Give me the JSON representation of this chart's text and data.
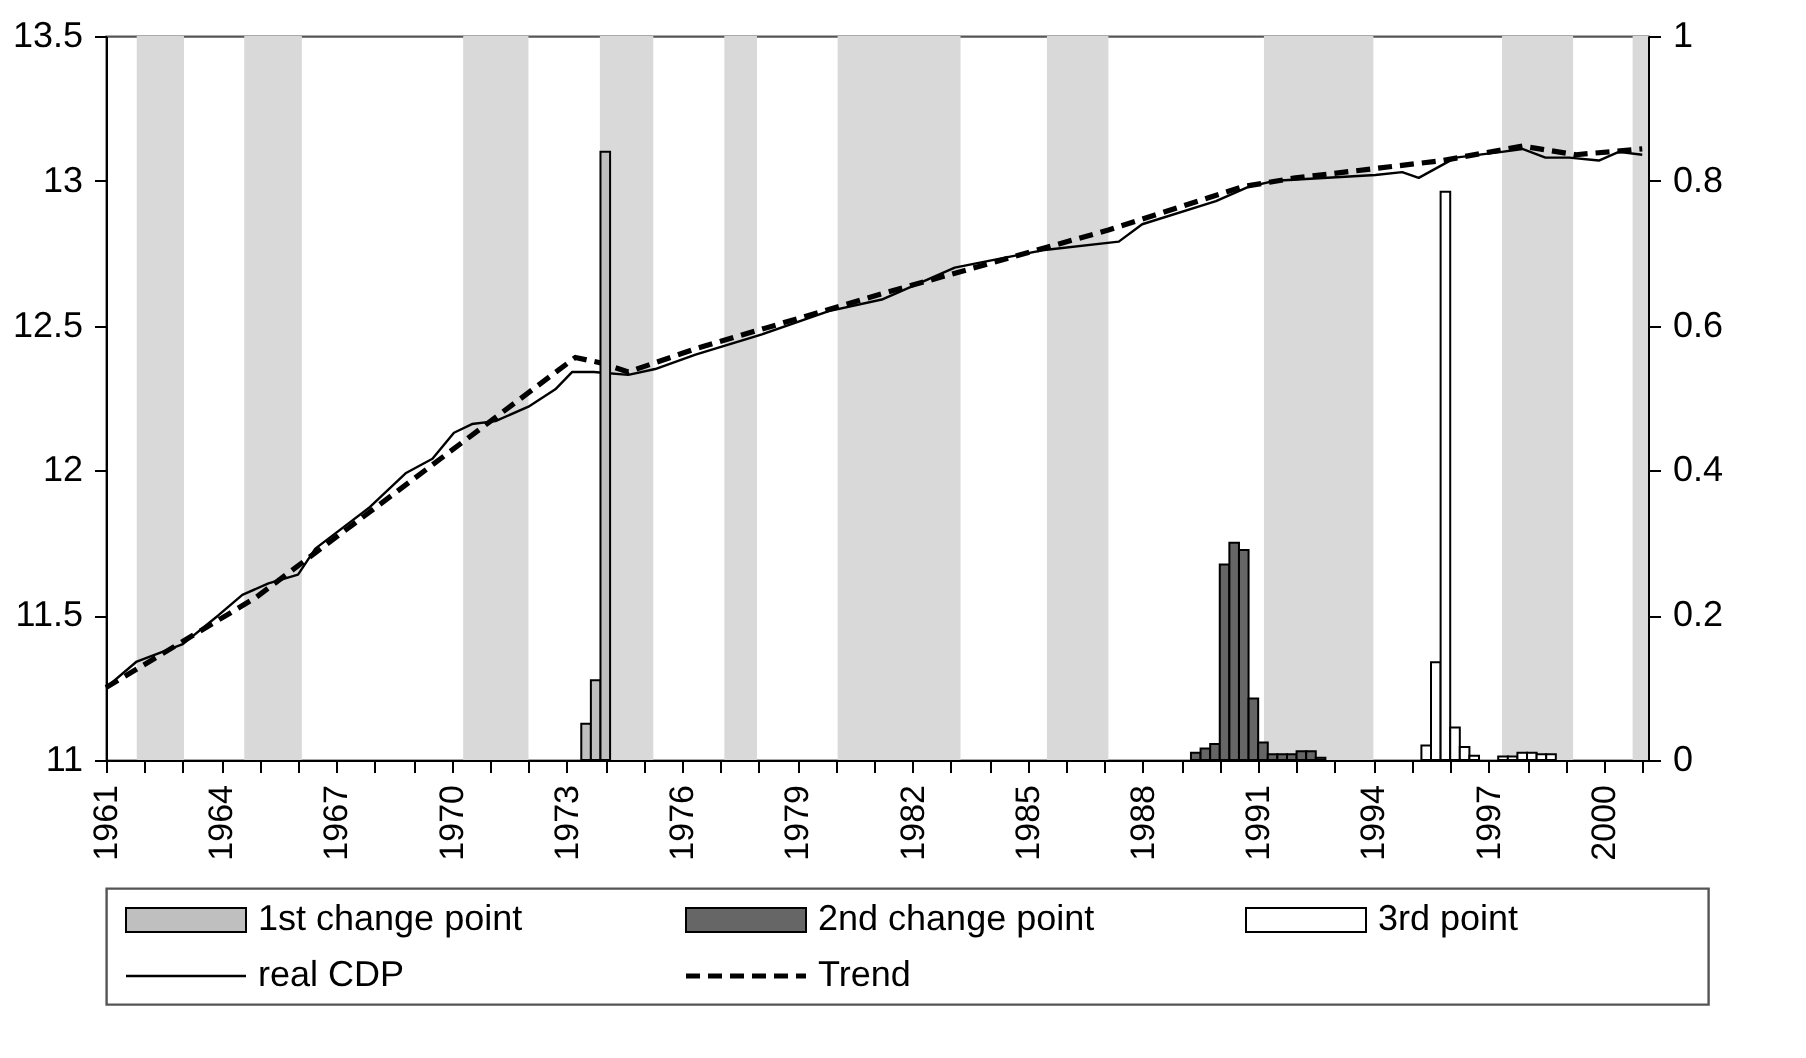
{
  "chart_data": {
    "type": "line",
    "xlim": [
      1961,
      2001.15
    ],
    "xticks": [
      1961,
      {
        "value": 1962,
        "label": null
      },
      {
        "value": 1963,
        "label": null
      },
      1964,
      {
        "value": 1965,
        "label": null
      },
      {
        "value": 1966,
        "label": null
      },
      1967,
      {
        "value": 1968,
        "label": null
      },
      {
        "value": 1969,
        "label": null
      },
      1970,
      {
        "value": 1971,
        "label": null
      },
      {
        "value": 1972,
        "label": null
      },
      1973,
      {
        "value": 1974,
        "label": null
      },
      {
        "value": 1975,
        "label": null
      },
      1976,
      {
        "value": 1977,
        "label": null
      },
      {
        "value": 1978,
        "label": null
      },
      1979,
      {
        "value": 1980,
        "label": null
      },
      {
        "value": 1981,
        "label": null
      },
      1982,
      {
        "value": 1983,
        "label": null
      },
      {
        "value": 1984,
        "label": null
      },
      1985,
      {
        "value": 1986,
        "label": null
      },
      {
        "value": 1987,
        "label": null
      },
      1988,
      {
        "value": 1989,
        "label": null
      },
      {
        "value": 1990,
        "label": null
      },
      1991,
      {
        "value": 1992,
        "label": null
      },
      {
        "value": 1993,
        "label": null
      },
      1994,
      {
        "value": 1995,
        "label": null
      },
      {
        "value": 1996,
        "label": null
      },
      1997,
      {
        "value": 1998,
        "label": null
      },
      {
        "value": 1999,
        "label": null
      },
      2000,
      {
        "value": 2001,
        "label": null
      }
    ],
    "ylim": [
      11,
      13.5
    ],
    "yticks": [
      11,
      11.5,
      12,
      12.5,
      13,
      13.5
    ],
    "y2lim": [
      0,
      1
    ],
    "y2ticks": [
      0,
      0.2,
      0.4,
      0.6,
      0.8,
      1
    ],
    "grid": false,
    "legend": "bottom",
    "series": [
      {
        "name": "1st change point",
        "type": "bar",
        "axis": "y2",
        "color": "#bfbfbf",
        "x": [
          1973.5,
          1973.75,
          1974.0
        ],
        "values": [
          0.05,
          0.11,
          0.84
        ]
      },
      {
        "name": "2nd change point",
        "type": "bar",
        "axis": "y2",
        "color": "#666666",
        "x": [
          1989.375,
          1989.625,
          1989.875,
          1990.125,
          1990.375,
          1990.625,
          1990.875,
          1991.125,
          1991.375,
          1991.625,
          1991.875,
          1992.125,
          1992.375,
          1992.625
        ],
        "values": [
          0.01,
          0.016,
          0.022,
          0.27,
          0.3,
          0.29,
          0.085,
          0.024,
          0.008,
          0.008,
          0.008,
          0.012,
          0.012,
          0.003
        ]
      },
      {
        "name": "3rd point",
        "type": "bar",
        "axis": "y2",
        "color": "#ffffff",
        "x": [
          1995.375,
          1995.625,
          1995.875,
          1996.125,
          1996.375,
          1996.625,
          1997.375,
          1997.625,
          1997.875,
          1998.125,
          1998.375,
          1998.625
        ],
        "values": [
          0.02,
          0.135,
          0.785,
          0.045,
          0.018,
          0.006,
          0.005,
          0.005,
          0.01,
          0.01,
          0.008,
          0.008
        ]
      },
      {
        "name": "real CDP",
        "color": "#000000",
        "line_style": "solid",
        "x": [
          1961.0,
          1961.8,
          1963.0,
          1963.93,
          1964.55,
          1965.23,
          1966.0,
          1966.45,
          1967.84,
          1968.8,
          1969.5,
          1970.06,
          1970.53,
          1971.14,
          1972.0,
          1972.7,
          1973.14,
          1973.7,
          1974.6,
          1975.3,
          1976.35,
          1978.08,
          1979.82,
          1981.2,
          1983.1,
          1985.38,
          1987.37,
          1987.98,
          1989.9,
          1990.76,
          1991.45,
          1994.05,
          1994.75,
          1995.18,
          1996.14,
          1997.35,
          1997.88,
          1998.48,
          1999.1,
          1999.87,
          2000.39,
          2001.0
        ],
        "values": [
          11.25,
          11.34,
          11.4,
          11.5,
          11.57,
          11.61,
          11.64,
          11.73,
          11.87,
          11.99,
          12.04,
          12.13,
          12.16,
          12.17,
          12.22,
          12.28,
          12.34,
          12.34,
          12.33,
          12.35,
          12.4,
          12.47,
          12.55,
          12.59,
          12.7,
          12.76,
          12.79,
          12.85,
          12.93,
          12.98,
          13.0,
          13.02,
          13.03,
          13.01,
          13.08,
          13.1,
          13.11,
          13.08,
          13.08,
          13.07,
          13.1,
          13.09
        ]
      },
      {
        "name": "Trend",
        "color": "#000000",
        "line_style": "dashed",
        "x": [
          1961.0,
          1964.89,
          1973.22,
          1973.92,
          1974.6,
          1976.35,
          1981.2,
          1987.1,
          1990.6,
          1991.97,
          1995.8,
          1997.88,
          1999.27,
          2001.0
        ],
        "values": [
          11.25,
          11.56,
          12.39,
          12.37,
          12.34,
          12.42,
          12.61,
          12.83,
          12.98,
          13.01,
          13.07,
          13.12,
          13.09,
          13.11
        ]
      }
    ],
    "bands": [
      {
        "axis": "x",
        "from": 1961.8,
        "to": 1963.03,
        "color": "#d9d9d9"
      },
      {
        "axis": "x",
        "from": 1964.6,
        "to": 1966.1,
        "color": "#d9d9d9"
      },
      {
        "axis": "x",
        "from": 1970.3,
        "to": 1972.0,
        "color": "#d9d9d9"
      },
      {
        "axis": "x",
        "from": 1973.86,
        "to": 1975.25,
        "color": "#d9d9d9"
      },
      {
        "axis": "x",
        "from": 1977.1,
        "to": 1977.95,
        "color": "#d9d9d9"
      },
      {
        "axis": "x",
        "from": 1980.05,
        "to": 1983.25,
        "color": "#d9d9d9"
      },
      {
        "axis": "x",
        "from": 1985.5,
        "to": 1987.1,
        "color": "#d9d9d9"
      },
      {
        "axis": "x",
        "from": 1991.15,
        "to": 1994.0,
        "color": "#d9d9d9"
      },
      {
        "axis": "x",
        "from": 1997.35,
        "to": 1999.2,
        "color": "#d9d9d9"
      },
      {
        "axis": "x",
        "from": 2000.75,
        "to": 2001.15,
        "color": "#d9d9d9"
      }
    ]
  }
}
